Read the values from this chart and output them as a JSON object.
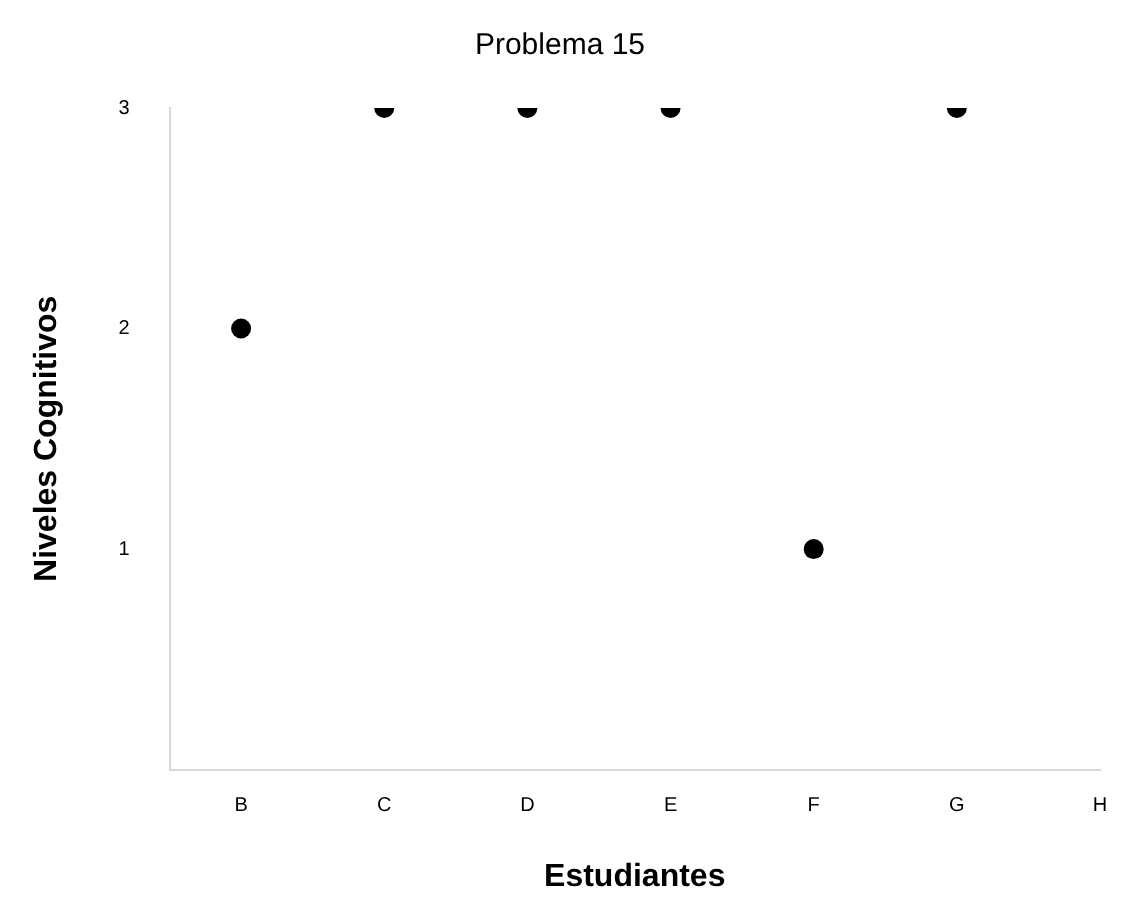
{
  "chart_data": {
    "type": "scatter",
    "title": "Problema 15",
    "xlabel": "Estudiantes",
    "ylabel": "Niveles Cognitivos",
    "categories": [
      "B",
      "C",
      "D",
      "E",
      "F",
      "G",
      "H"
    ],
    "series": [
      {
        "color": "#000000",
        "values": [
          2,
          3,
          3,
          3,
          1,
          3,
          null
        ]
      }
    ],
    "ylim": [
      0,
      3
    ],
    "yticks": [
      1,
      2,
      3
    ],
    "grid": false,
    "legend": false,
    "marker": "circle"
  }
}
